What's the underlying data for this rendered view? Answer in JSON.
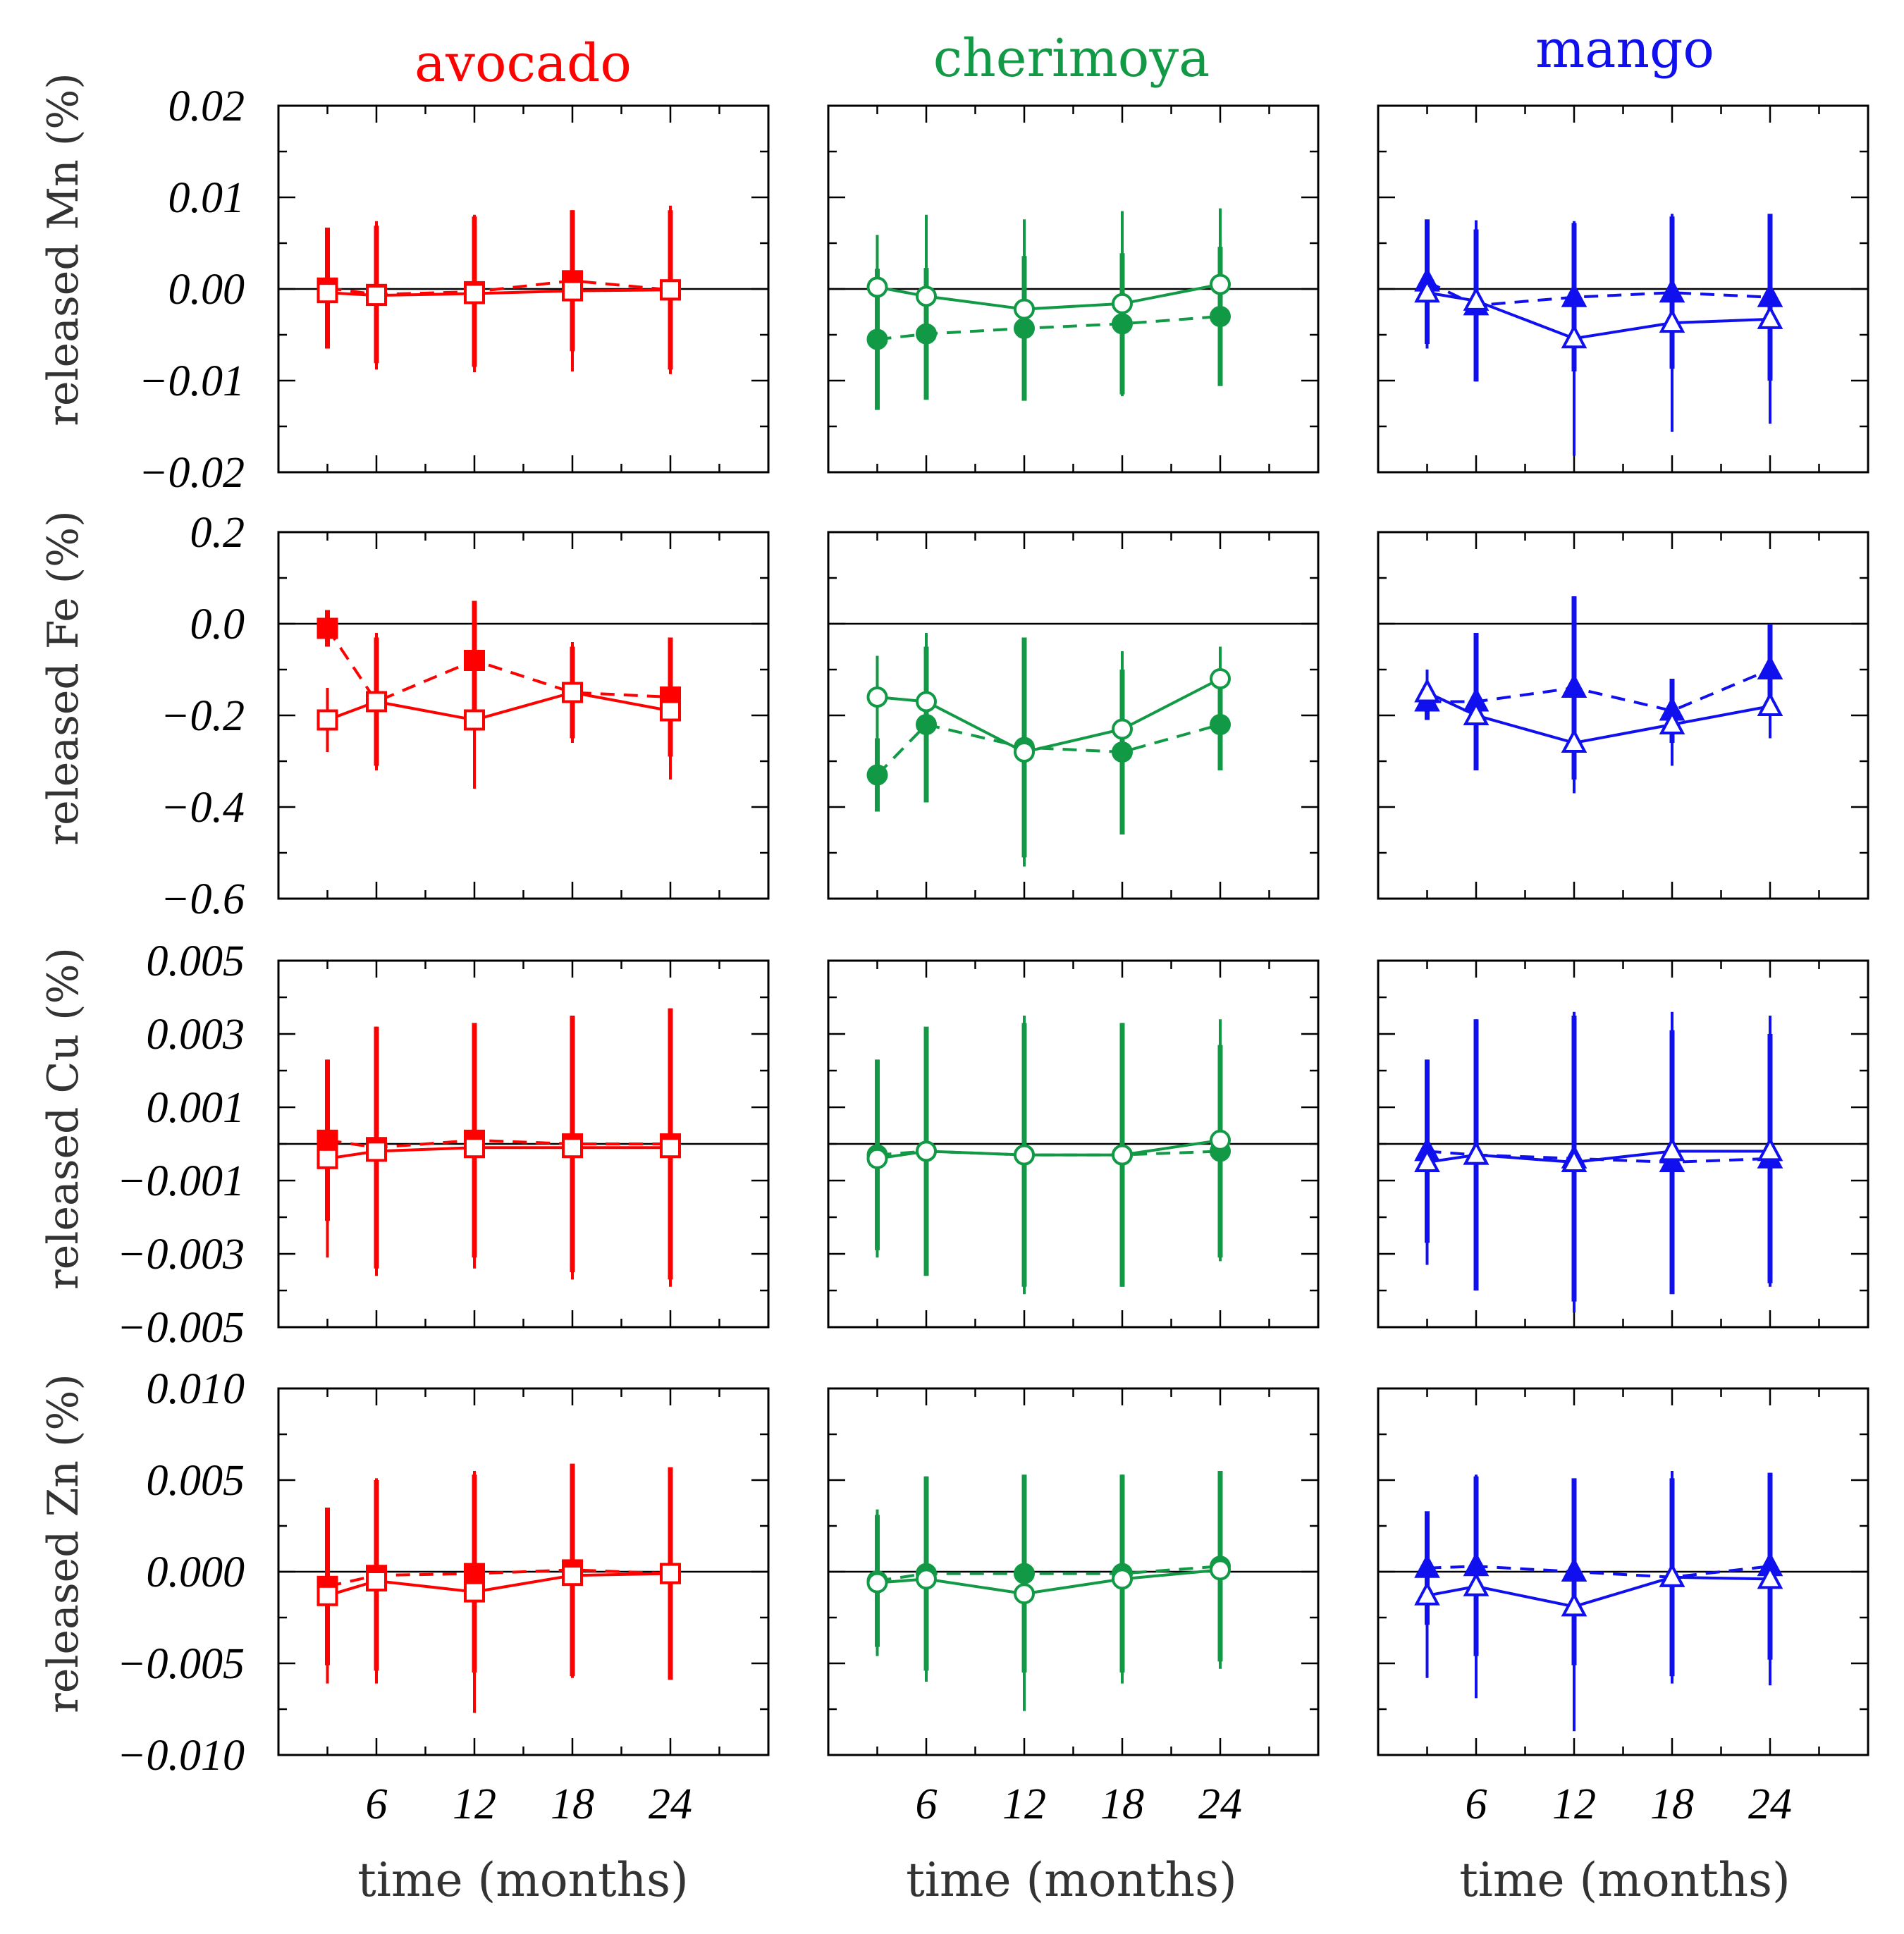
{
  "colors": {
    "avocado": "#ff0000",
    "cherimoya": "#129945",
    "mango": "#1010ee",
    "axis": "#000000"
  },
  "panel_titles": [
    "avocado",
    "cherimoya",
    "mango"
  ],
  "row_labels": [
    "released Mn (%)",
    "released Fe (%)",
    "released Cu (%)",
    "released Zn (%)"
  ],
  "xlabel": "time (months)",
  "x_tick_labels": [
    "6",
    "12",
    "18",
    "24"
  ],
  "y_tick_labels": [
    [
      "0.02",
      "0.01",
      "0.00",
      "−0.01",
      "−0.02"
    ],
    [
      "0.2",
      "0.0",
      "−0.2",
      "−0.4",
      "−0.6"
    ],
    [
      "0.005",
      "0.003",
      "0.001",
      "−0.001",
      "−0.003",
      "−0.005"
    ],
    [
      "0.010",
      "0.005",
      "0.000",
      "−0.005",
      "−0.010"
    ]
  ],
  "chart_data": {
    "type": "scatter",
    "layout": "4 rows (elements) x 3 columns (fruits), error bars, solid line = open markers, dashed line = filled markers",
    "x": [
      3,
      6,
      12,
      18,
      24
    ],
    "xlim": [
      0,
      30
    ],
    "x_ticks": [
      6,
      12,
      18,
      24
    ],
    "markers": {
      "avocado": "square",
      "cherimoya": "circle",
      "mango": "triangle"
    },
    "rows": [
      {
        "element": "Mn",
        "ylim": [
          -0.02,
          0.02
        ],
        "y_ticks": [
          0.02,
          0.01,
          0.0,
          -0.01,
          -0.02
        ],
        "panels": [
          {
            "fruit": "avocado",
            "series": [
              {
                "style": "filled-dashed",
                "values": [
                  0.0001,
                  -0.0006,
                  -0.0003,
                  0.0009,
                  -0.0001
                ],
                "errors": [
                  0.0066,
                  0.0075,
                  0.0082,
                  0.0077,
                  0.0087
                ]
              },
              {
                "style": "open-solid",
                "values": [
                  -0.0004,
                  -0.0007,
                  -0.0005,
                  -0.0002,
                  -0.0001
                ],
                "errors": [
                  0.0061,
                  0.0081,
                  0.0086,
                  0.0088,
                  0.0092
                ]
              }
            ]
          },
          {
            "fruit": "cherimoya",
            "series": [
              {
                "style": "filled-dashed",
                "values": [
                  -0.0055,
                  -0.0049,
                  -0.0043,
                  -0.0038,
                  -0.003
                ],
                "errors": [
                  0.0077,
                  0.0072,
                  0.0079,
                  0.0077,
                  0.0076
                ]
              },
              {
                "style": "open-solid",
                "values": [
                  0.0002,
                  -0.0008,
                  -0.0022,
                  -0.0016,
                  0.0005
                ],
                "errors": [
                  0.0057,
                  0.0089,
                  0.0098,
                  0.0101,
                  0.0083
                ]
              }
            ]
          },
          {
            "fruit": "mango",
            "series": [
              {
                "style": "filled-dashed",
                "values": [
                  0.0008,
                  -0.0018,
                  -0.0009,
                  -0.0004,
                  -0.0009
                ],
                "errors": [
                  0.0068,
                  0.0083,
                  0.0081,
                  0.0083,
                  0.0091
                ]
              },
              {
                "style": "open-solid",
                "values": [
                  -0.0004,
                  -0.0013,
                  -0.0054,
                  -0.0037,
                  -0.0033
                ],
                "errors": [
                  0.0061,
                  0.0088,
                  0.0128,
                  0.0119,
                  0.0114
                ]
              }
            ]
          }
        ]
      },
      {
        "element": "Fe",
        "ylim": [
          -0.6,
          0.2
        ],
        "y_ticks": [
          0.2,
          0.0,
          -0.2,
          -0.4,
          -0.6
        ],
        "panels": [
          {
            "fruit": "avocado",
            "series": [
              {
                "style": "filled-dashed",
                "values": [
                  -0.01,
                  -0.17,
                  -0.08,
                  -0.15,
                  -0.16
                ],
                "errors": [
                  0.04,
                  0.14,
                  0.13,
                  0.1,
                  0.13
                ]
              },
              {
                "style": "open-solid",
                "values": [
                  -0.21,
                  -0.17,
                  -0.21,
                  -0.15,
                  -0.19
                ],
                "errors": [
                  0.07,
                  0.15,
                  0.15,
                  0.11,
                  0.15
                ]
              }
            ]
          },
          {
            "fruit": "cherimoya",
            "series": [
              {
                "style": "filled-dashed",
                "values": [
                  -0.33,
                  -0.22,
                  -0.27,
                  -0.28,
                  -0.22
                ],
                "errors": [
                  0.08,
                  0.17,
                  0.24,
                  0.18,
                  0.1
                ]
              },
              {
                "style": "open-solid",
                "values": [
                  -0.16,
                  -0.17,
                  -0.28,
                  -0.23,
                  -0.12
                ],
                "errors": [
                  0.09,
                  0.15,
                  0.25,
                  0.17,
                  0.07
                ]
              }
            ]
          },
          {
            "fruit": "mango",
            "series": [
              {
                "style": "filled-dashed",
                "values": [
                  -0.17,
                  -0.17,
                  -0.14,
                  -0.19,
                  -0.1
                ],
                "errors": [
                  0.04,
                  0.15,
                  0.2,
                  0.07,
                  0.1
                ]
              },
              {
                "style": "open-solid",
                "values": [
                  -0.15,
                  -0.2,
                  -0.26,
                  -0.22,
                  -0.18
                ],
                "errors": [
                  0.05,
                  0.12,
                  0.11,
                  0.09,
                  0.07
                ]
              }
            ]
          }
        ]
      },
      {
        "element": "Cu",
        "ylim": [
          -0.005,
          0.005
        ],
        "y_ticks": [
          0.005,
          0.003,
          0.001,
          -0.001,
          -0.003,
          -0.005
        ],
        "panels": [
          {
            "fruit": "avocado",
            "series": [
              {
                "style": "filled-dashed",
                "values": [
                  0.0001,
                  -0.0001,
                  0.0001,
                  0.0,
                  0.0
                ],
                "errors": [
                  0.0022,
                  0.0033,
                  0.0032,
                  0.0035,
                  0.0037
                ]
              },
              {
                "style": "open-solid",
                "values": [
                  -0.0004,
                  -0.0002,
                  -0.0001,
                  -0.0001,
                  -0.0001
                ],
                "errors": [
                  0.0027,
                  0.0034,
                  0.0033,
                  0.0036,
                  0.0038
                ]
              }
            ]
          },
          {
            "fruit": "cherimoya",
            "series": [
              {
                "style": "filled-dashed",
                "values": [
                  -0.0003,
                  -0.0002,
                  -0.0003,
                  -0.0003,
                  -0.0002
                ],
                "errors": [
                  0.0026,
                  0.0034,
                  0.0036,
                  0.0036,
                  0.0029
                ]
              },
              {
                "style": "open-solid",
                "values": [
                  -0.0004,
                  -0.0002,
                  -0.0003,
                  -0.0003,
                  0.0001
                ],
                "errors": [
                  0.0027,
                  0.0033,
                  0.0038,
                  0.0036,
                  0.0033
                ]
              }
            ]
          },
          {
            "fruit": "mango",
            "series": [
              {
                "style": "filled-dashed",
                "values": [
                  -0.0002,
                  -0.0003,
                  -0.0004,
                  -0.0005,
                  -0.0004
                ],
                "errors": [
                  0.0025,
                  0.0037,
                  0.0039,
                  0.0036,
                  0.0034
                ]
              },
              {
                "style": "open-solid",
                "values": [
                  -0.0005,
                  -0.0003,
                  -0.0005,
                  -0.0002,
                  -0.0002
                ],
                "errors": [
                  0.0028,
                  0.0037,
                  0.0041,
                  0.0038,
                  0.0037
                ]
              }
            ]
          }
        ]
      },
      {
        "element": "Zn",
        "ylim": [
          -0.01,
          0.01
        ],
        "y_ticks": [
          0.01,
          0.005,
          0.0,
          -0.005,
          -0.01
        ],
        "panels": [
          {
            "fruit": "avocado",
            "series": [
              {
                "style": "filled-dashed",
                "values": [
                  -0.0008,
                  -0.0002,
                  -0.0001,
                  0.0001,
                  -0.0001
                ],
                "errors": [
                  0.0043,
                  0.0052,
                  0.0054,
                  0.0058,
                  0.0058
                ]
              },
              {
                "style": "open-solid",
                "values": [
                  -0.0013,
                  -0.0005,
                  -0.0011,
                  -0.0002,
                  -0.0001
                ],
                "errors": [
                  0.0048,
                  0.0056,
                  0.0066,
                  0.0056,
                  0.0057
                ]
              }
            ]
          },
          {
            "fruit": "cherimoya",
            "series": [
              {
                "style": "filled-dashed",
                "values": [
                  -0.0005,
                  -0.0001,
                  -0.0001,
                  -0.0001,
                  0.0003
                ],
                "errors": [
                  0.0036,
                  0.0053,
                  0.0054,
                  0.0054,
                  0.0052
                ]
              },
              {
                "style": "open-solid",
                "values": [
                  -0.0006,
                  -0.0004,
                  -0.0012,
                  -0.0004,
                  0.0001
                ],
                "errors": [
                  0.004,
                  0.0056,
                  0.0064,
                  0.0057,
                  0.0054
                ]
              }
            ]
          },
          {
            "fruit": "mango",
            "series": [
              {
                "style": "filled-dashed",
                "values": [
                  0.0002,
                  0.0003,
                  0.0,
                  -0.0003,
                  0.0003
                ],
                "errors": [
                  0.0031,
                  0.0049,
                  0.0051,
                  0.0054,
                  0.0051
                ]
              },
              {
                "style": "open-solid",
                "values": [
                  -0.0013,
                  -0.0008,
                  -0.0019,
                  -0.0003,
                  -0.0004
                ],
                "errors": [
                  0.0045,
                  0.0061,
                  0.0068,
                  0.0058,
                  0.0058
                ]
              }
            ]
          }
        ]
      }
    ]
  }
}
